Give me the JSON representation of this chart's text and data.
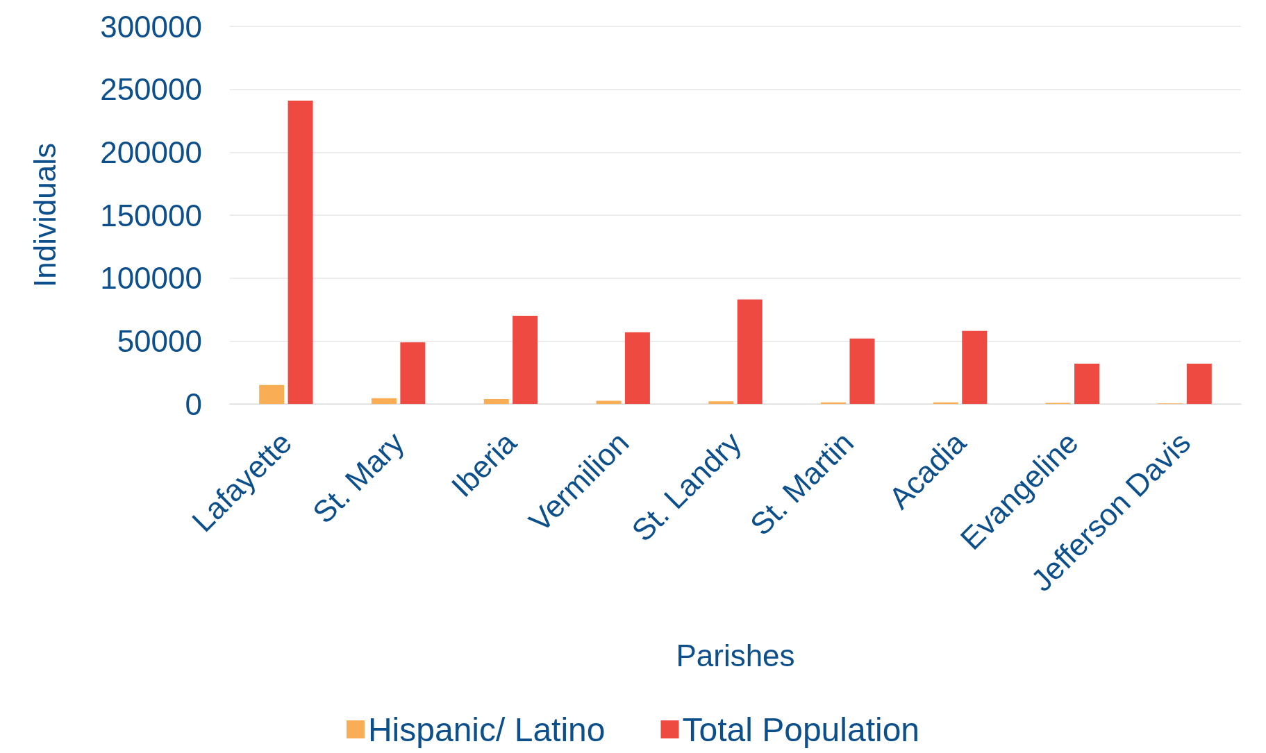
{
  "chart_data": {
    "type": "bar",
    "xlabel": "Parishes",
    "ylabel": "Individuals",
    "categories": [
      "Lafayette",
      "St. Mary",
      "Iberia",
      "Vermilion",
      "St. Landry",
      "St. Martin",
      "Acadia",
      "Evangeline",
      "Jefferson Davis"
    ],
    "series": [
      {
        "name": "Hispanic/ Latino",
        "color": "#f9ae56",
        "values": [
          15000,
          4500,
          3800,
          2500,
          2000,
          1300,
          1300,
          800,
          400
        ]
      },
      {
        "name": "Total Population",
        "color": "#ef4a42",
        "values": [
          241000,
          49000,
          70000,
          57000,
          83000,
          52000,
          58000,
          32000,
          32000
        ]
      }
    ],
    "ylim": [
      0,
      300000
    ],
    "yticks": [
      0,
      50000,
      100000,
      150000,
      200000,
      250000,
      300000
    ],
    "grid": "y",
    "legend": "bottom"
  }
}
